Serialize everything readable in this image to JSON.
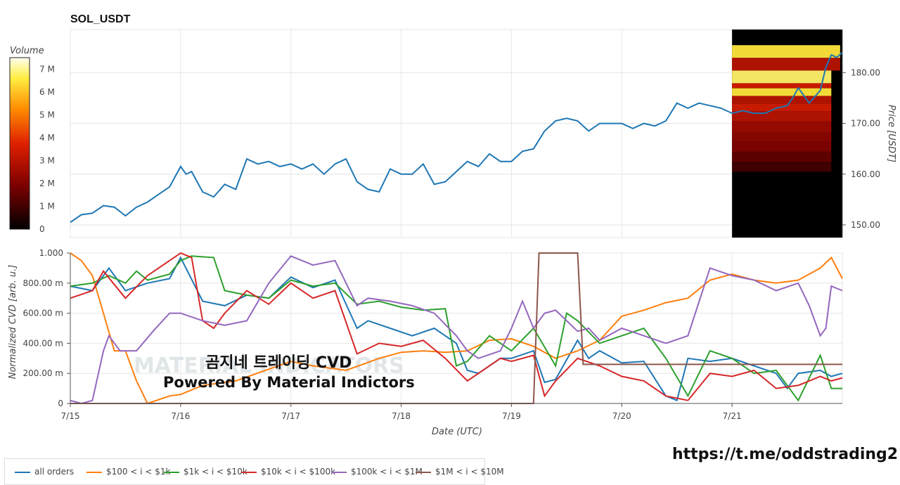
{
  "pair_title": "SOL_USDT",
  "footer_link": "https://t.me/oddstrading2",
  "overlay": {
    "title": "곰지네 트레이딩 CVD",
    "subtitle": "Powered By Material Indictors"
  },
  "watermark": "MATERIAL INDICATORS",
  "colorbar": {
    "label": "Volume",
    "ticks": [
      "0",
      "1 M",
      "2 M",
      "3 M",
      "4 M",
      "5 M",
      "6 M",
      "7 M"
    ],
    "max": 7.5
  },
  "legend": [
    {
      "label": "all orders",
      "color": "#1f77b4"
    },
    {
      "label": "$100 < i < $1k",
      "color": "#ff7f0e"
    },
    {
      "label": "$1k < i < $10k",
      "color": "#2ca02c"
    },
    {
      "label": "$10k < i < $100k",
      "color": "#d62728"
    },
    {
      "label": "$100k < i < $1M",
      "color": "#9467bd"
    },
    {
      "label": "$1M < i < $10M",
      "color": "#8c564b"
    }
  ],
  "chart_data": [
    {
      "type": "line",
      "title": "SOL_USDT",
      "ylabel": "Price [USDT]",
      "ylim": [
        147.5,
        188.5
      ],
      "yticks": [
        "150.00",
        "160.00",
        "170.00",
        "180.00"
      ],
      "ytick_values": [
        150,
        160,
        170,
        180
      ],
      "xlim": [
        0,
        7
      ],
      "series": [
        {
          "color": "#1f77b4",
          "x": [
            0,
            0.1,
            0.2,
            0.3,
            0.4,
            0.5,
            0.6,
            0.7,
            0.8,
            0.9,
            1.0,
            1.05,
            1.1,
            1.2,
            1.3,
            1.4,
            1.5,
            1.6,
            1.7,
            1.8,
            1.9,
            2.0,
            2.1,
            2.2,
            2.3,
            2.4,
            2.5,
            2.6,
            2.7,
            2.8,
            2.9,
            3.0,
            3.1,
            3.2,
            3.3,
            3.4,
            3.5,
            3.6,
            3.7,
            3.8,
            3.9,
            4.0,
            4.1,
            4.2,
            4.3,
            4.4,
            4.5,
            4.6,
            4.7,
            4.8,
            4.9,
            5.0,
            5.1,
            5.2,
            5.3,
            5.4,
            5.5,
            5.6,
            5.7,
            5.8,
            5.9,
            6.0,
            6.1,
            6.2,
            6.3,
            6.4,
            6.5,
            6.55,
            6.6,
            6.7,
            6.8,
            6.85,
            6.9,
            6.95,
            7.0
          ],
          "y": [
            150.5,
            152.0,
            152.3,
            153.8,
            153.5,
            151.8,
            153.5,
            154.5,
            156.0,
            157.5,
            161.5,
            160.0,
            160.5,
            156.5,
            155.5,
            158.0,
            157.0,
            163.0,
            162.0,
            162.5,
            161.5,
            162.0,
            161.0,
            162.0,
            160.0,
            162.0,
            163.0,
            158.5,
            157.0,
            156.5,
            161.0,
            160.0,
            160.0,
            162.0,
            158.0,
            158.5,
            160.5,
            162.5,
            161.5,
            164.0,
            162.5,
            162.5,
            164.5,
            165.0,
            168.5,
            170.5,
            171.0,
            170.5,
            168.5,
            170.0,
            170.0,
            170.0,
            169.0,
            170.0,
            169.5,
            170.5,
            174.0,
            173.0,
            174.0,
            173.5,
            173.0,
            172.0,
            172.5,
            172.0,
            172.0,
            173.0,
            173.5,
            175.0,
            177.0,
            174.0,
            176.5,
            181.0,
            183.5,
            183.0,
            184.0
          ]
        }
      ],
      "heatmap": {
        "x_range": [
          6.0,
          7.0
        ],
        "note": "order book liquidity heatmap, colored by Volume",
        "bands": [
          {
            "y": 185.0,
            "level": 6.5
          },
          {
            "y": 182.5,
            "level": 3.0
          },
          {
            "y": 180.0,
            "level": 6.8
          },
          {
            "y": 177.5,
            "level": 3.5
          },
          {
            "y": 176.5,
            "level": 6.5
          },
          {
            "y": 175.0,
            "level": 3.0
          },
          {
            "y": 173.5,
            "level": 3.5
          },
          {
            "y": 172.0,
            "level": 3.0
          },
          {
            "y": 170.0,
            "level": 2.5
          },
          {
            "y": 168.0,
            "level": 2.2
          },
          {
            "y": 166.0,
            "level": 2.0
          },
          {
            "y": 164.0,
            "level": 1.5
          },
          {
            "y": 162.0,
            "level": 1.0
          }
        ]
      }
    },
    {
      "type": "line",
      "xlabel": "Date (UTC)",
      "ylabel": "Normalized CVD [arb. u.]",
      "ylim": [
        0,
        1
      ],
      "yticks": [
        "0",
        "200.00 m",
        "400.00 m",
        "600.00 m",
        "800.00 m",
        "1.000"
      ],
      "ytick_values": [
        0,
        0.2,
        0.4,
        0.6,
        0.8,
        1.0
      ],
      "xlim": [
        0,
        7
      ],
      "categories": [
        "7/15",
        "7/16",
        "7/17",
        "7/18",
        "7/19",
        "7/20",
        "7/21"
      ],
      "category_positions": [
        0,
        1,
        2,
        3,
        4,
        5,
        6
      ],
      "series": [
        {
          "name": "all orders",
          "color": "#1f77b4",
          "x": [
            0,
            0.2,
            0.3,
            0.35,
            0.5,
            0.7,
            0.9,
            1.0,
            1.2,
            1.4,
            1.6,
            1.8,
            2.0,
            2.2,
            2.4,
            2.6,
            2.7,
            2.9,
            3.1,
            3.3,
            3.5,
            3.6,
            3.7,
            3.9,
            4.0,
            4.2,
            4.3,
            4.4,
            4.6,
            4.7,
            4.8,
            5.0,
            5.2,
            5.4,
            5.5,
            5.6,
            5.8,
            6.0,
            6.2,
            6.4,
            6.5,
            6.6,
            6.8,
            6.9,
            7.0
          ],
          "y": [
            0.78,
            0.75,
            0.85,
            0.9,
            0.75,
            0.8,
            0.83,
            0.97,
            0.68,
            0.65,
            0.72,
            0.7,
            0.84,
            0.77,
            0.82,
            0.5,
            0.55,
            0.5,
            0.45,
            0.5,
            0.4,
            0.22,
            0.2,
            0.3,
            0.3,
            0.35,
            0.14,
            0.16,
            0.42,
            0.3,
            0.35,
            0.27,
            0.28,
            0.05,
            0.02,
            0.3,
            0.28,
            0.3,
            0.25,
            0.2,
            0.1,
            0.2,
            0.22,
            0.18,
            0.2
          ]
        },
        {
          "name": "$100 < i < $1k",
          "color": "#ff7f0e",
          "x": [
            0,
            0.1,
            0.2,
            0.3,
            0.4,
            0.5,
            0.6,
            0.7,
            0.9,
            1.0,
            1.2,
            1.5,
            2.0,
            2.2,
            2.5,
            2.8,
            3.0,
            3.2,
            3.4,
            3.6,
            3.8,
            4.0,
            4.2,
            4.4,
            4.6,
            4.8,
            5.0,
            5.2,
            5.4,
            5.6,
            5.8,
            6.0,
            6.2,
            6.4,
            6.6,
            6.8,
            6.9,
            7.0
          ],
          "y": [
            1.0,
            0.95,
            0.85,
            0.6,
            0.35,
            0.35,
            0.15,
            0.0,
            0.05,
            0.06,
            0.12,
            0.15,
            0.28,
            0.25,
            0.22,
            0.3,
            0.34,
            0.35,
            0.34,
            0.35,
            0.42,
            0.43,
            0.38,
            0.3,
            0.35,
            0.42,
            0.58,
            0.62,
            0.67,
            0.7,
            0.82,
            0.86,
            0.82,
            0.8,
            0.82,
            0.9,
            0.97,
            0.83
          ]
        },
        {
          "name": "$1k < i < $10k",
          "color": "#2ca02c",
          "x": [
            0,
            0.2,
            0.35,
            0.5,
            0.6,
            0.7,
            0.9,
            1.0,
            1.1,
            1.3,
            1.4,
            1.6,
            1.8,
            2.0,
            2.2,
            2.4,
            2.6,
            2.8,
            3.0,
            3.2,
            3.4,
            3.5,
            3.6,
            3.8,
            4.0,
            4.2,
            4.4,
            4.5,
            4.6,
            4.8,
            5.0,
            5.2,
            5.4,
            5.6,
            5.8,
            6.0,
            6.2,
            6.4,
            6.6,
            6.8,
            6.9,
            7.0
          ],
          "y": [
            0.78,
            0.8,
            0.85,
            0.8,
            0.88,
            0.82,
            0.86,
            0.95,
            0.98,
            0.97,
            0.75,
            0.72,
            0.7,
            0.82,
            0.78,
            0.8,
            0.66,
            0.68,
            0.64,
            0.62,
            0.63,
            0.25,
            0.28,
            0.45,
            0.35,
            0.5,
            0.25,
            0.6,
            0.55,
            0.4,
            0.45,
            0.5,
            0.3,
            0.05,
            0.35,
            0.3,
            0.2,
            0.22,
            0.02,
            0.32,
            0.1,
            0.1
          ]
        },
        {
          "name": "$10k < i < $100k",
          "color": "#d62728",
          "x": [
            0,
            0.2,
            0.3,
            0.5,
            0.7,
            0.9,
            1.0,
            1.1,
            1.2,
            1.3,
            1.4,
            1.6,
            1.8,
            2.0,
            2.2,
            2.4,
            2.6,
            2.8,
            3.0,
            3.2,
            3.4,
            3.6,
            3.7,
            3.9,
            4.0,
            4.2,
            4.3,
            4.4,
            4.6,
            4.8,
            5.0,
            5.2,
            5.4,
            5.6,
            5.8,
            6.0,
            6.2,
            6.4,
            6.6,
            6.8,
            6.9,
            7.0
          ],
          "y": [
            0.7,
            0.75,
            0.88,
            0.7,
            0.85,
            0.95,
            1.0,
            0.97,
            0.55,
            0.5,
            0.6,
            0.75,
            0.66,
            0.8,
            0.7,
            0.75,
            0.33,
            0.4,
            0.38,
            0.42,
            0.3,
            0.15,
            0.2,
            0.3,
            0.28,
            0.32,
            0.05,
            0.15,
            0.3,
            0.25,
            0.18,
            0.15,
            0.05,
            0.02,
            0.2,
            0.18,
            0.22,
            0.1,
            0.12,
            0.18,
            0.15,
            0.17
          ]
        },
        {
          "name": "$100k < i < $1M",
          "color": "#9467bd",
          "x": [
            0,
            0.1,
            0.2,
            0.3,
            0.35,
            0.45,
            0.6,
            0.75,
            0.9,
            1.0,
            1.2,
            1.4,
            1.6,
            1.8,
            2.0,
            2.2,
            2.4,
            2.6,
            2.7,
            2.9,
            3.1,
            3.3,
            3.5,
            3.6,
            3.7,
            3.9,
            4.0,
            4.1,
            4.2,
            4.3,
            4.4,
            4.6,
            4.7,
            4.8,
            5.0,
            5.2,
            5.4,
            5.6,
            5.8,
            6.0,
            6.2,
            6.4,
            6.6,
            6.7,
            6.8,
            6.85,
            6.9,
            7.0
          ],
          "y": [
            0.02,
            0.0,
            0.02,
            0.35,
            0.45,
            0.35,
            0.35,
            0.48,
            0.6,
            0.6,
            0.55,
            0.52,
            0.55,
            0.8,
            0.98,
            0.92,
            0.95,
            0.65,
            0.7,
            0.68,
            0.65,
            0.6,
            0.45,
            0.35,
            0.3,
            0.35,
            0.5,
            0.68,
            0.5,
            0.6,
            0.62,
            0.48,
            0.5,
            0.42,
            0.5,
            0.45,
            0.4,
            0.45,
            0.9,
            0.85,
            0.82,
            0.75,
            0.8,
            0.65,
            0.45,
            0.5,
            0.78,
            0.75
          ]
        },
        {
          "name": "$1M < i < $10M",
          "color": "#8c564b",
          "x": [
            0,
            4.2,
            4.25,
            4.6,
            4.65,
            7.0
          ],
          "y": [
            0.0,
            0.0,
            1.0,
            1.0,
            0.26,
            0.26
          ]
        }
      ]
    }
  ]
}
